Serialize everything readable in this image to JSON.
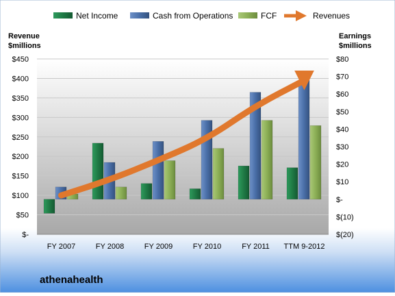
{
  "chart_data": {
    "type": "bar",
    "company": "athenahealth",
    "categories": [
      "FY 2007",
      "FY 2008",
      "FY 2009",
      "FY 2010",
      "FY 2011",
      "TTM 9-2012"
    ],
    "legend": [
      "Net Income",
      "Cash from Operations",
      "FCF",
      "Revenues"
    ],
    "left_axis": {
      "label_line1": "Revenue",
      "label_line2": "$millions",
      "range": [
        0,
        450
      ],
      "ticks": [
        0,
        50,
        100,
        150,
        200,
        250,
        300,
        350,
        400,
        450
      ],
      "tick_labels": [
        "$-",
        "$50",
        "$100",
        "$150",
        "$200",
        "$250",
        "$300",
        "$350",
        "$400",
        "$450"
      ]
    },
    "right_axis": {
      "label_line1": "Earnings",
      "label_line2": "$millions",
      "range": [
        -20,
        80
      ],
      "ticks": [
        -20,
        -10,
        0,
        10,
        20,
        30,
        40,
        50,
        60,
        70,
        80
      ],
      "tick_labels": [
        "$(20)",
        "$(10)",
        "$-",
        "$10",
        "$20",
        "$30",
        "$40",
        "$50",
        "$60",
        "$70",
        "$80"
      ]
    },
    "series": [
      {
        "name": "Net Income",
        "axis": "right",
        "color": "#1f7a45",
        "values": [
          -8,
          32,
          9,
          6,
          19,
          18
        ]
      },
      {
        "name": "Cash from Operations",
        "axis": "right",
        "color": "#4a6fa8",
        "values": [
          7,
          21,
          33,
          45,
          61,
          68
        ]
      },
      {
        "name": "FCF",
        "axis": "right",
        "color": "#8caf56",
        "values": [
          3,
          7,
          22,
          29,
          45,
          42
        ]
      },
      {
        "name": "Revenues",
        "axis": "left",
        "type": "line",
        "color": "#e0782d",
        "values": [
          100,
          140,
          190,
          245,
          330,
          395
        ]
      }
    ],
    "grid": true,
    "legend_position": "top"
  }
}
